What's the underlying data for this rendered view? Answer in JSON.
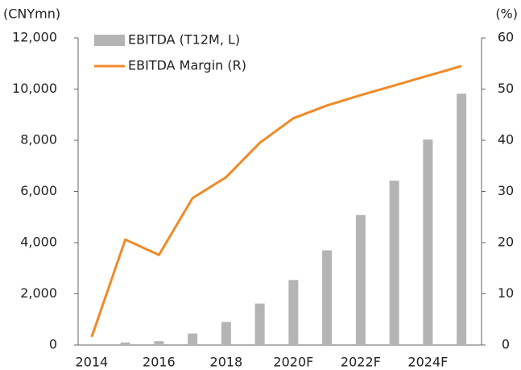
{
  "chart_data": {
    "type": "bar_line",
    "y_label": "(CNYmn)",
    "y2_label": "(%)",
    "categories": [
      "2014",
      null,
      "2016",
      null,
      "2018",
      null,
      "2020F",
      null,
      "2022F",
      null,
      "2024F",
      null
    ],
    "series": [
      {
        "name": "EBITDA (T12M, L)",
        "type": "bar",
        "color": "#b4b4b4",
        "axis": "y",
        "values": [
          0,
          100,
          150,
          450,
          900,
          1620,
          2540,
          3700,
          5080,
          6420,
          8030,
          9820
        ]
      },
      {
        "name": "EBITDA Margin (R)",
        "type": "line",
        "color": "#f08a28",
        "axis": "y2",
        "values": [
          1.6,
          20.6,
          17.6,
          28.7,
          32.8,
          39.5,
          44.3,
          46.8,
          48.8,
          50.7,
          52.6,
          54.5
        ]
      }
    ],
    "ylim": [
      0,
      12000
    ],
    "yticks": [
      0,
      {
        "value": 2000,
        "label": "2,000"
      },
      {
        "value": 4000,
        "label": "4,000"
      },
      {
        "value": 6000,
        "label": "6,000"
      },
      {
        "value": 8000,
        "label": "8,000"
      },
      {
        "value": 10000,
        "label": "10,000"
      },
      {
        "value": 12000,
        "label": "12,000"
      }
    ],
    "y2lim": [
      0,
      60
    ],
    "y2ticks": [
      0,
      10,
      20,
      30,
      40,
      50,
      60
    ],
    "legend": "top-left",
    "grid": false
  }
}
